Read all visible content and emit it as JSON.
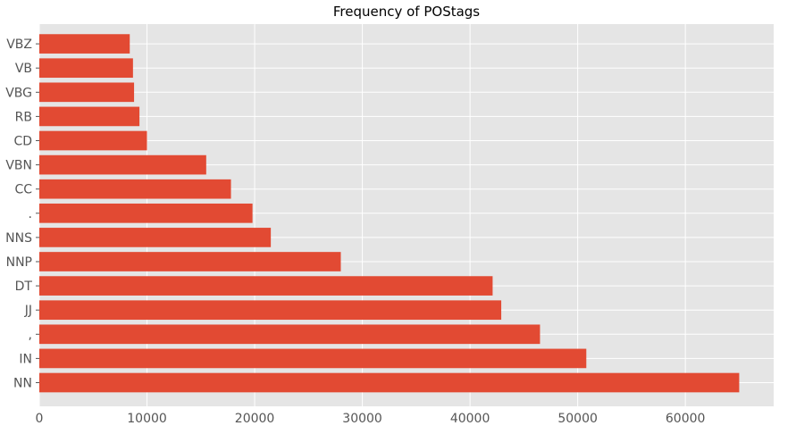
{
  "chart_data": {
    "type": "bar",
    "orientation": "horizontal",
    "title": "Frequency of POStags",
    "xlabel": "",
    "ylabel": "",
    "categories": [
      "NN",
      "IN",
      ",",
      "JJ",
      "DT",
      "NNP",
      "NNS",
      ".",
      "CC",
      "VBN",
      "CD",
      "RB",
      "VBG",
      "VB",
      "VBZ"
    ],
    "values": [
      65000,
      50800,
      46500,
      42900,
      42100,
      28000,
      21500,
      19800,
      17800,
      15500,
      10000,
      9300,
      8800,
      8700,
      8400
    ],
    "xlim": [
      0,
      68200
    ],
    "xticks": [
      0,
      10000,
      20000,
      30000,
      40000,
      50000,
      60000
    ],
    "grid": true,
    "bar_color": "#E24A33",
    "background_color": "#E5E5E5",
    "grid_color": "#FFFFFF"
  }
}
